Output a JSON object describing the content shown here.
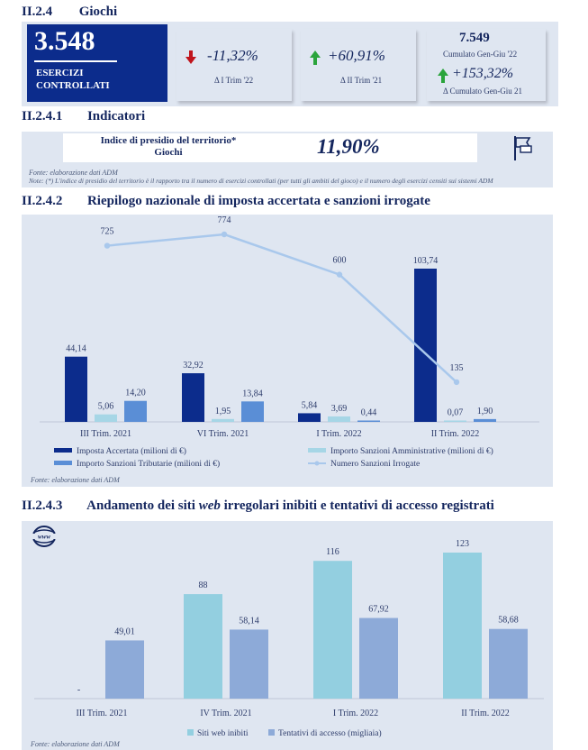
{
  "section_giochi": {
    "number": "II.2.4",
    "title": "Giochi"
  },
  "kpi_main": {
    "value": "3.548",
    "label_line1": "ESERCIZI",
    "label_line2": "CONTROLLATI"
  },
  "kpi_boxes": [
    {
      "value": "-11,32%",
      "sub": "Δ I Trim '22",
      "direction": "down"
    },
    {
      "value": "+60,91%",
      "sub": "Δ II Trim '21",
      "direction": "up"
    },
    {
      "top_value": "7.549",
      "top_sub": "Cumulato Gen-Giu '22",
      "value": "+153,32%",
      "sub": "Δ Cumulato Gen-Giu 21",
      "direction": "up"
    }
  ],
  "section_indicatori": {
    "number": "II.2.4.1",
    "title": "Indicatori"
  },
  "indicator": {
    "label_line1": "Indice di presidio del territorio*",
    "label_line2": "Giochi",
    "value": "11,90%",
    "icon": "flag-icon"
  },
  "indicator_source": "Fonte: elaborazione dati ADM",
  "indicator_note": "Note: (*) L'indice di presidio del territorio è il rapporto tra il numero di esercizi controllati (per tutti gli ambiti del gioco) e il numero degli esercizi censiti sui sistemi ADM",
  "section_riepilogo": {
    "number": "II.2.4.2",
    "title": "Riepilogo nazionale di imposta accertata e sanzioni irrogate"
  },
  "chart1_source": "Fonte: elaborazione dati ADM",
  "section_andamento": {
    "number": "II.2.4.3",
    "title_pre": "Andamento dei siti ",
    "title_em": "web",
    "title_post": " irregolari inibiti e tentativi di accesso registrati",
    "icon": "www-globe-icon"
  },
  "chart2_source": "Fonte: elaborazione dati ADM",
  "chart_data": [
    {
      "type": "bar",
      "categories": [
        "III Trim. 2021",
        "VI Trim. 2021",
        "I Trim. 2022",
        "II Trim. 2022"
      ],
      "series": [
        {
          "name": "Imposta Accertata (milioni di €)",
          "values": [
            44.14,
            32.92,
            5.84,
            103.74
          ],
          "labels": [
            "44,14",
            "32,92",
            "5,84",
            "103,74"
          ],
          "color": "#0c2c8c"
        },
        {
          "name": "Importo Sanzioni Amministrative (milioni di €)",
          "values": [
            5.06,
            1.95,
            3.69,
            0.07
          ],
          "labels": [
            "5,06",
            "1,95",
            "3,69",
            "0,07"
          ],
          "color": "#a6d6e6"
        },
        {
          "name": "Importo Sanzioni Tributarie (milioni di €)",
          "values": [
            14.2,
            13.84,
            0.44,
            1.9
          ],
          "labels": [
            "14,20",
            "13,84",
            "0,44",
            "1,90"
          ],
          "color": "#5a8ed6"
        }
      ],
      "line_series": {
        "name": "Numero Sanzioni Irrogate",
        "values": [
          725,
          774,
          600,
          135
        ],
        "labels": [
          "725",
          "774",
          "600",
          "135"
        ],
        "color": "#a9c8ec"
      },
      "grid": false,
      "legend_position": "bottom"
    },
    {
      "type": "bar",
      "categories": [
        "III Trim. 2021",
        "IV Trim. 2021",
        "I Trim. 2022",
        "II Trim. 2022"
      ],
      "series": [
        {
          "name": "Siti web inibiti",
          "values": [
            0,
            88,
            116,
            123
          ],
          "labels": [
            "-",
            "88",
            "116",
            "123"
          ],
          "color": "#93cfe0"
        },
        {
          "name": "Tentativi di accesso (migliaia)",
          "values": [
            49.01,
            58.14,
            67.92,
            58.68
          ],
          "labels": [
            "49,01",
            "58,14",
            "67,92",
            "58,68"
          ],
          "color": "#8daad8"
        }
      ],
      "grid": false,
      "legend_position": "bottom"
    }
  ]
}
